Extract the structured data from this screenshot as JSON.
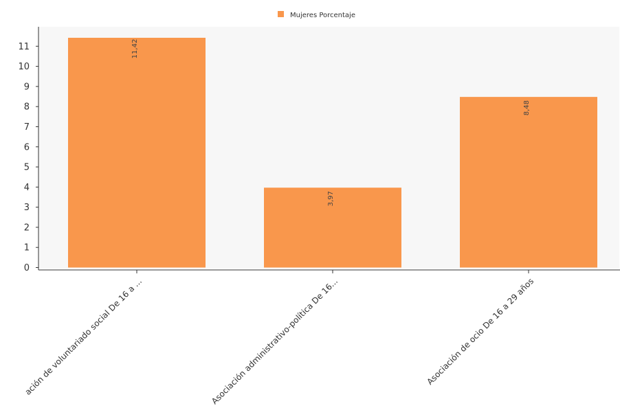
{
  "chart_data": {
    "type": "bar",
    "title": "",
    "xlabel": "",
    "ylabel": "",
    "categories": [
      "ación de voluntariado social De 16 a ...",
      "Asociación administrativo-política De 16...",
      "Asociación de ocio De 16 a 29 años"
    ],
    "series": [
      {
        "name": "Mujeres Porcentaje",
        "color": "#F9974C",
        "values": [
          11.42,
          3.97,
          8.48
        ],
        "labels": [
          "11,42",
          "3,97",
          "8,48"
        ]
      }
    ],
    "ylim": [
      0,
      12
    ],
    "yticks": [
      0,
      1,
      2,
      3,
      4,
      5,
      6,
      7,
      8,
      9,
      10,
      11
    ],
    "grid": false,
    "legend_position": "top-center",
    "plot_background": "#F7F7F7"
  }
}
